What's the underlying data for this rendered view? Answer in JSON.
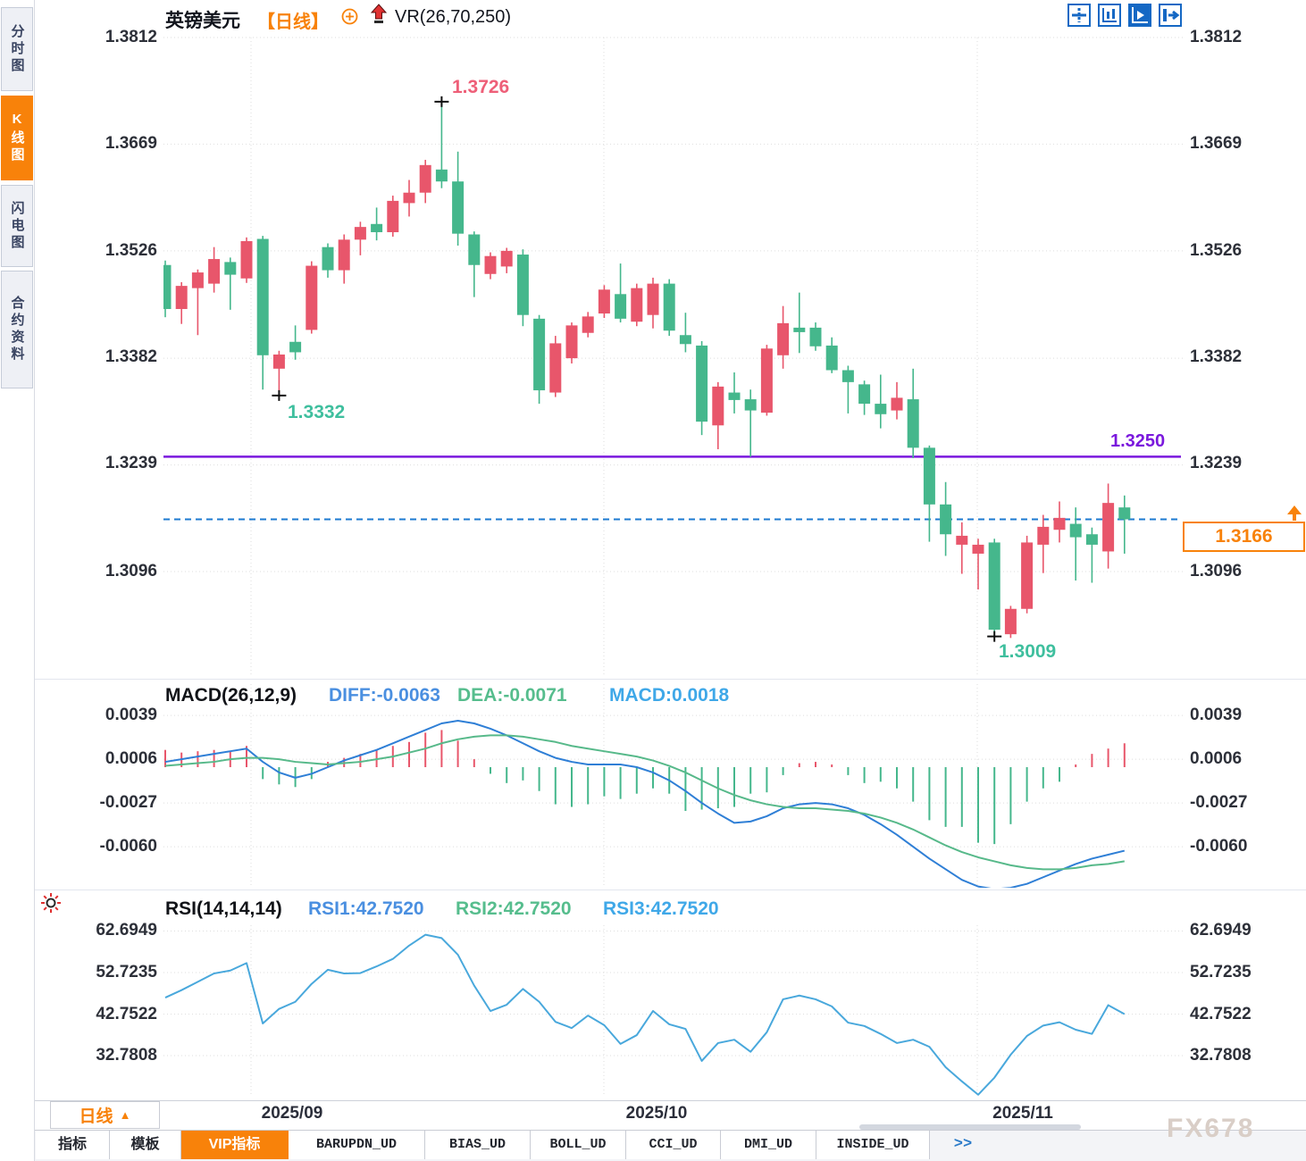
{
  "sidebar": {
    "tabs": [
      {
        "label": "分时图",
        "active": false
      },
      {
        "label": "K线图",
        "active": true
      },
      {
        "label": "闪电图",
        "active": false
      },
      {
        "label": "合约资料",
        "active": false
      }
    ]
  },
  "header": {
    "symbol": "英镑美元",
    "interval_tag": "【日线】",
    "indicator": "VR(26,70,250)"
  },
  "toolbar": {
    "icons": [
      "layout-split-icon",
      "axis-scale-icon",
      "play-chart-icon",
      "detach-window-icon"
    ]
  },
  "main": {
    "y_labels": [
      "1.3812",
      "1.3669",
      "1.3526",
      "1.3382",
      "1.3239",
      "1.3096"
    ],
    "annotations": {
      "high": "1.3726",
      "low1": "1.3332",
      "low2": "1.3009",
      "hline": "1.3250",
      "last": "1.3166"
    }
  },
  "macd": {
    "title": "MACD(26,12,9)",
    "diff": "DIFF:-0.0063",
    "dea": "DEA:-0.0071",
    "macd": "MACD:0.0018",
    "y_labels": [
      "0.0039",
      "0.0006",
      "-0.0027",
      "-0.0060"
    ]
  },
  "rsi": {
    "title": "RSI(14,14,14)",
    "r1": "RSI1:42.7520",
    "r2": "RSI2:42.7520",
    "r3": "RSI3:42.7520",
    "y_labels": [
      "62.6949",
      "52.7235",
      "42.7522",
      "32.7808"
    ]
  },
  "xaxis": {
    "interval": "日线",
    "labels": [
      "2025/09",
      "2025/10",
      "2025/11"
    ]
  },
  "bottom_tabs": [
    {
      "label": "指标",
      "active": false
    },
    {
      "label": "模板",
      "active": false
    },
    {
      "label": "VIP指标",
      "active": true
    },
    {
      "label": "BARUPDN_UD",
      "active": false
    },
    {
      "label": "BIAS_UD",
      "active": false
    },
    {
      "label": "BOLL_UD",
      "active": false
    },
    {
      "label": "CCI_UD",
      "active": false
    },
    {
      "label": "DMI_UD",
      "active": false
    },
    {
      "label": "INSIDE_UD",
      "active": false
    },
    {
      "label": ">>",
      "active": false
    }
  ],
  "watermark": "FX678",
  "colors": {
    "up": "#e8566b",
    "down": "#45b78c",
    "accent_orange": "#f8820a",
    "purple_line": "#7a18dd",
    "last_price_dash": "#1d7ad0",
    "diff_line": "#2f7fd6",
    "dea_line": "#57b98a",
    "rsi_line": "#49a8dc",
    "swing_high_label": "#ee5f78",
    "swing_low_label": "#3fbf9e",
    "grid": "#dedede"
  },
  "chart_data": [
    {
      "type": "candlestick",
      "title": "英镑美元 日线",
      "legend_position": "top-left",
      "grid": true,
      "x_tick_labels": [
        "2025/09",
        "2025/10",
        "2025/11"
      ],
      "y_ticks": [
        1.3812,
        1.3669,
        1.3526,
        1.3382,
        1.3239,
        1.3096
      ],
      "ylim": [
        1.296,
        1.382
      ],
      "candles_ohlc": [
        [
          1.3507,
          1.3513,
          1.3437,
          1.3448
        ],
        [
          1.3448,
          1.3484,
          1.3428,
          1.3479
        ],
        [
          1.3476,
          1.3501,
          1.3413,
          1.3497
        ],
        [
          1.3482,
          1.3531,
          1.347,
          1.3515
        ],
        [
          1.3511,
          1.3517,
          1.3447,
          1.3494
        ],
        [
          1.3489,
          1.3544,
          1.3483,
          1.3539
        ],
        [
          1.3542,
          1.3546,
          1.334,
          1.3386
        ],
        [
          1.3368,
          1.3392,
          1.3332,
          1.3387
        ],
        [
          1.3404,
          1.3426,
          1.338,
          1.339
        ],
        [
          1.342,
          1.3512,
          1.3415,
          1.3506
        ],
        [
          1.3531,
          1.3536,
          1.349,
          1.35
        ],
        [
          1.35,
          1.3548,
          1.3482,
          1.3541
        ],
        [
          1.3541,
          1.3565,
          1.352,
          1.3558
        ],
        [
          1.3562,
          1.3584,
          1.354,
          1.3551
        ],
        [
          1.3551,
          1.36,
          1.3545,
          1.3593
        ],
        [
          1.359,
          1.3621,
          1.3572,
          1.3604
        ],
        [
          1.3604,
          1.3648,
          1.359,
          1.3641
        ],
        [
          1.3635,
          1.3726,
          1.361,
          1.3619
        ],
        [
          1.3619,
          1.3659,
          1.3533,
          1.3549
        ],
        [
          1.3548,
          1.3552,
          1.3464,
          1.3507
        ],
        [
          1.3495,
          1.3524,
          1.3488,
          1.3519
        ],
        [
          1.3505,
          1.353,
          1.3496,
          1.3526
        ],
        [
          1.3521,
          1.3528,
          1.3425,
          1.344
        ],
        [
          1.3435,
          1.344,
          1.3321,
          1.3339
        ],
        [
          1.3336,
          1.3412,
          1.333,
          1.3402
        ],
        [
          1.3382,
          1.343,
          1.3375,
          1.3426
        ],
        [
          1.3416,
          1.3444,
          1.341,
          1.3438
        ],
        [
          1.3442,
          1.348,
          1.3436,
          1.3474
        ],
        [
          1.3468,
          1.3509,
          1.343,
          1.3435
        ],
        [
          1.3431,
          1.3482,
          1.3425,
          1.3476
        ],
        [
          1.344,
          1.349,
          1.3422,
          1.3482
        ],
        [
          1.3482,
          1.3488,
          1.3412,
          1.3419
        ],
        [
          1.3413,
          1.3443,
          1.339,
          1.3401
        ],
        [
          1.3399,
          1.3405,
          1.3279,
          1.3297
        ],
        [
          1.3292,
          1.335,
          1.326,
          1.3344
        ],
        [
          1.3336,
          1.3363,
          1.3308,
          1.3326
        ],
        [
          1.3327,
          1.334,
          1.325,
          1.3312
        ],
        [
          1.3309,
          1.34,
          1.3305,
          1.3395
        ],
        [
          1.3386,
          1.3452,
          1.3368,
          1.3429
        ],
        [
          1.3423,
          1.347,
          1.3389,
          1.3417
        ],
        [
          1.3423,
          1.343,
          1.3392,
          1.3398
        ],
        [
          1.3399,
          1.341,
          1.3362,
          1.3366
        ],
        [
          1.3366,
          1.3372,
          1.3308,
          1.335
        ],
        [
          1.3347,
          1.3352,
          1.3306,
          1.3321
        ],
        [
          1.3321,
          1.336,
          1.3288,
          1.3307
        ],
        [
          1.3312,
          1.335,
          1.33,
          1.3329
        ],
        [
          1.3327,
          1.3368,
          1.3248,
          1.3262
        ],
        [
          1.3262,
          1.3265,
          1.3136,
          1.3186
        ],
        [
          1.3186,
          1.3216,
          1.3117,
          1.3146
        ],
        [
          1.3132,
          1.3162,
          1.3093,
          1.3144
        ],
        [
          1.312,
          1.314,
          1.3072,
          1.3132
        ],
        [
          1.3135,
          1.314,
          1.3009,
          1.3018
        ],
        [
          1.3012,
          1.305,
          1.3007,
          1.3046
        ],
        [
          1.3046,
          1.3144,
          1.304,
          1.3135
        ],
        [
          1.3132,
          1.3172,
          1.3094,
          1.3156
        ],
        [
          1.3152,
          1.319,
          1.3135,
          1.3168
        ],
        [
          1.316,
          1.3182,
          1.3084,
          1.3142
        ],
        [
          1.3146,
          1.3155,
          1.3081,
          1.3132
        ],
        [
          1.3123,
          1.3214,
          1.31,
          1.3188
        ],
        [
          1.3182,
          1.3198,
          1.312,
          1.3166
        ]
      ],
      "swing_annotations": [
        {
          "index": 17,
          "price": 1.3726,
          "pos": "high",
          "label": "1.3726"
        },
        {
          "index": 7,
          "price": 1.3332,
          "pos": "low",
          "label": "1.3332"
        },
        {
          "index": 51,
          "price": 1.3009,
          "pos": "low",
          "label": "1.3009"
        }
      ],
      "hline": {
        "price": 1.325,
        "label": "1.3250"
      },
      "last_price_line": {
        "price": 1.3166,
        "label": "1.3166"
      }
    },
    {
      "type": "bar",
      "subtype": "macd",
      "title": "MACD(26,12,9)",
      "values_current": {
        "DIFF": -0.0063,
        "DEA": -0.0071,
        "MACD": 0.0018
      },
      "y_ticks": [
        0.0039,
        0.0006,
        -0.0027,
        -0.006
      ],
      "diff": [
        0.0004,
        0.0006,
        0.0008,
        0.001,
        0.0012,
        0.0014,
        0.0004,
        -0.0004,
        -0.0008,
        -0.0005,
        0.0,
        0.0005,
        0.0009,
        0.0013,
        0.0018,
        0.0023,
        0.0028,
        0.0033,
        0.0035,
        0.0033,
        0.0029,
        0.0024,
        0.0018,
        0.0012,
        0.0007,
        0.0004,
        0.0002,
        0.0002,
        0.0002,
        0.0,
        -0.0004,
        -0.001,
        -0.0018,
        -0.0027,
        -0.0035,
        -0.0042,
        -0.0041,
        -0.0037,
        -0.0031,
        -0.0028,
        -0.0027,
        -0.0028,
        -0.0031,
        -0.0036,
        -0.0043,
        -0.0051,
        -0.006,
        -0.0069,
        -0.0077,
        -0.0085,
        -0.009,
        -0.0092,
        -0.0091,
        -0.0088,
        -0.0083,
        -0.0078,
        -0.0073,
        -0.0069,
        -0.0066,
        -0.0063
      ],
      "dea": [
        0.0001,
        0.0002,
        0.0003,
        0.0004,
        0.0006,
        0.0007,
        0.0007,
        0.0006,
        0.0004,
        0.0003,
        0.0002,
        0.0003,
        0.0004,
        0.0006,
        0.0008,
        0.0011,
        0.0014,
        0.0018,
        0.0021,
        0.0023,
        0.0024,
        0.0024,
        0.0023,
        0.0021,
        0.0019,
        0.0016,
        0.0014,
        0.0012,
        0.001,
        0.0008,
        0.0005,
        0.0001,
        -0.0004,
        -0.001,
        -0.0016,
        -0.0021,
        -0.0025,
        -0.0028,
        -0.003,
        -0.0031,
        -0.0031,
        -0.0032,
        -0.0033,
        -0.0035,
        -0.0038,
        -0.0042,
        -0.0047,
        -0.0053,
        -0.0059,
        -0.0064,
        -0.0068,
        -0.0071,
        -0.0074,
        -0.0076,
        -0.0077,
        -0.0077,
        -0.0076,
        -0.0074,
        -0.0073,
        -0.0071
      ],
      "hist": [
        0.0013,
        0.0011,
        0.0012,
        0.0013,
        0.0012,
        0.0016,
        -0.0009,
        -0.0013,
        -0.0015,
        -0.0009,
        0.0004,
        0.0007,
        0.001,
        0.0013,
        0.0016,
        0.0019,
        0.0026,
        0.0028,
        0.002,
        0.0006,
        -0.0005,
        -0.0012,
        -0.001,
        -0.0018,
        -0.0028,
        -0.003,
        -0.0028,
        -0.0022,
        -0.0024,
        -0.002,
        -0.0016,
        -0.002,
        -0.0033,
        -0.0032,
        -0.0031,
        -0.003,
        -0.002,
        -0.0019,
        -0.0006,
        0.0003,
        0.0004,
        0.0002,
        -0.0006,
        -0.0012,
        -0.0011,
        -0.0016,
        -0.0026,
        -0.004,
        -0.0045,
        -0.0045,
        -0.0057,
        -0.0058,
        -0.0043,
        -0.0026,
        -0.0016,
        -0.0011,
        0.0002,
        0.001,
        0.0014,
        0.0018
      ]
    },
    {
      "type": "line",
      "subtype": "rsi",
      "title": "RSI(14,14,14)",
      "values_current": {
        "RSI1": 42.752,
        "RSI2": 42.752,
        "RSI3": 42.752
      },
      "y_ticks": [
        62.6949,
        52.7235,
        42.7522,
        32.7808
      ],
      "rsi": [
        46.7,
        48.5,
        50.5,
        52.5,
        53.2,
        55.0,
        40.5,
        44.0,
        45.7,
        50.0,
        53.4,
        52.5,
        52.6,
        54.2,
        56.0,
        59.2,
        61.8,
        61.0,
        57.0,
        49.6,
        43.5,
        45.0,
        48.8,
        45.7,
        40.9,
        39.4,
        42.4,
        40.1,
        35.6,
        37.7,
        43.5,
        40.3,
        39.2,
        31.5,
        35.8,
        36.6,
        33.7,
        38.4,
        46.3,
        47.2,
        46.3,
        44.6,
        40.7,
        39.9,
        38.0,
        35.8,
        36.6,
        34.9,
        30.0,
        26.6,
        23.4,
        27.5,
        33.0,
        37.5,
        40.0,
        40.8,
        39.0,
        38.0,
        44.9,
        42.752
      ]
    }
  ]
}
